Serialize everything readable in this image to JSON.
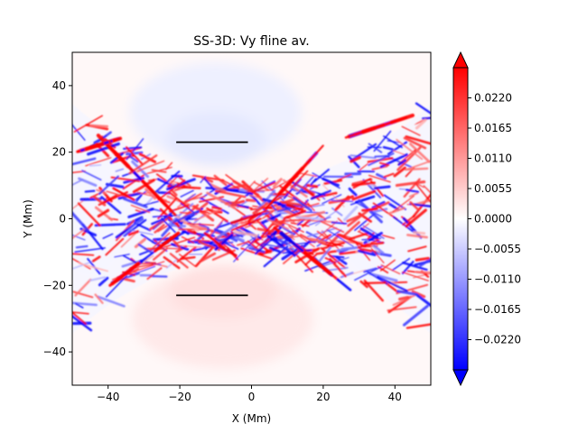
{
  "chart_data": {
    "type": "heatmap",
    "title": "SS-3D: Vy fline av.",
    "xlabel": "X (Mm)",
    "ylabel": "Y (Mm)",
    "xlim": [
      -50,
      50
    ],
    "ylim": [
      -50,
      50
    ],
    "x_ticks": [
      -40,
      -20,
      0,
      20,
      40
    ],
    "y_ticks": [
      -40,
      -20,
      0,
      20,
      40
    ],
    "x_tick_labels": [
      "−40",
      "−20",
      "0",
      "20",
      "40"
    ],
    "y_tick_labels": [
      "−40",
      "−20",
      "0",
      "20",
      "40"
    ],
    "colormap": "bwr",
    "colorbar": {
      "range": [
        -0.0275,
        0.0275
      ],
      "ticks": [
        0.022,
        0.0165,
        0.011,
        0.0055,
        0.0,
        -0.0055,
        -0.011,
        -0.0165,
        -0.022
      ],
      "tick_labels": [
        "0.0220",
        "0.0165",
        "0.0110",
        "0.0055",
        "0.0000",
        "−0.0055",
        "−0.0110",
        "−0.0165",
        "−0.0220"
      ],
      "extend": "both"
    },
    "annotation_lines": [
      {
        "x": [
          -21,
          -1
        ],
        "y": [
          23,
          23
        ]
      },
      {
        "x": [
          -21,
          -1
        ],
        "y": [
          -23,
          -23
        ]
      }
    ],
    "colors": {
      "positive": "#ff0000",
      "negative": "#0000ff",
      "zero": "#ffffff"
    }
  }
}
